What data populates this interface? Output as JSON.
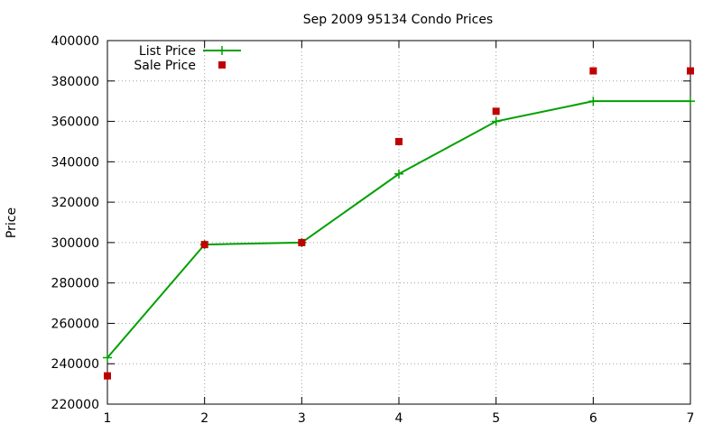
{
  "chart_data": {
    "type": "line",
    "title": "Sep 2009 95134 Condo Prices",
    "xlabel": "",
    "ylabel": "Price",
    "x": [
      1,
      2,
      3,
      4,
      5,
      6,
      7
    ],
    "xlim": [
      1,
      7
    ],
    "ylim": [
      220000,
      400000
    ],
    "x_ticks": [
      "1",
      "2",
      "3",
      "4",
      "5",
      "6",
      "7"
    ],
    "y_ticks": [
      "220000",
      "240000",
      "260000",
      "280000",
      "300000",
      "320000",
      "340000",
      "360000",
      "380000",
      "400000"
    ],
    "grid": true,
    "legend_position": "top-left",
    "series": [
      {
        "name": "List Price",
        "style": "line-plus-markers",
        "color": "#00a000",
        "values": [
          243000,
          299000,
          300000,
          334000,
          360000,
          370000,
          370000
        ]
      },
      {
        "name": "Sale Price",
        "style": "square-markers",
        "color": "#c00000",
        "values": [
          234000,
          299000,
          300000,
          350000,
          365000,
          385000,
          385000
        ]
      }
    ]
  }
}
